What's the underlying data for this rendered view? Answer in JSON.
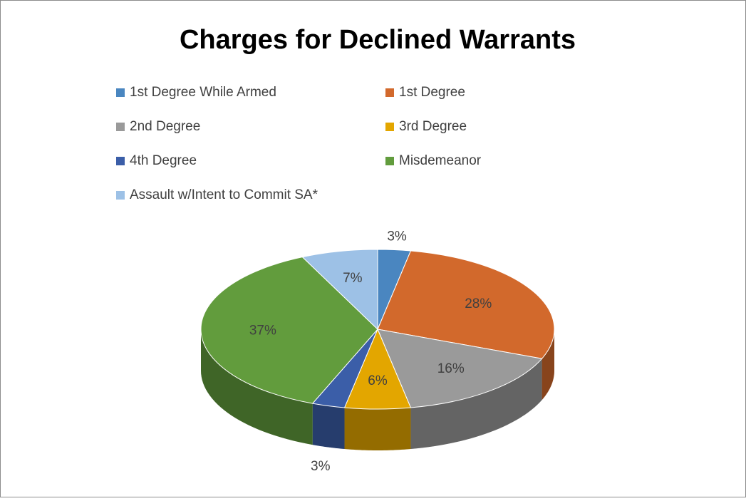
{
  "chart_data": {
    "type": "pie3d",
    "title": "Charges for Declined Warrants",
    "categories": [
      "1st Degree While Armed",
      "1st Degree",
      "2nd Degree",
      "3rd Degree",
      "4th Degree",
      "Misdemeanor",
      "Assault w/Intent to Commit SA*"
    ],
    "values": [
      3,
      28,
      16,
      6,
      3,
      37,
      7
    ],
    "value_labels": [
      "3%",
      "28%",
      "16%",
      "6%",
      "3%",
      "37%",
      "7%"
    ],
    "colors": [
      "#4a86c0",
      "#d2692c",
      "#9a9a9a",
      "#e3a600",
      "#3b5ea8",
      "#629c3d",
      "#9dc1e6"
    ],
    "legend": "top"
  }
}
